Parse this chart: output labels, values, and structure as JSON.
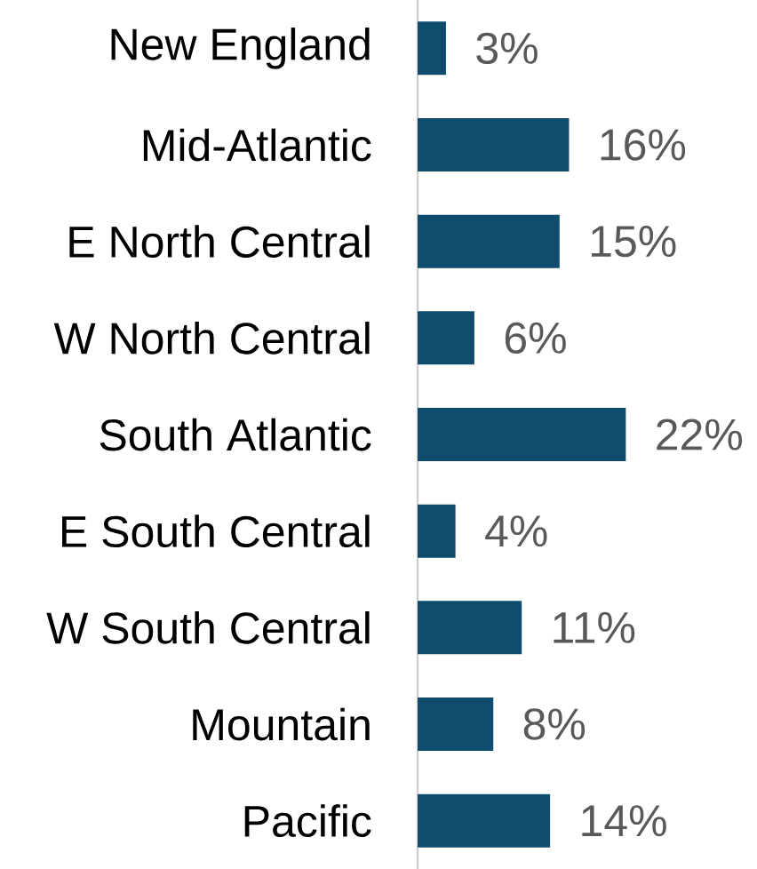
{
  "chart_data": {
    "type": "bar",
    "orientation": "horizontal",
    "color": "#0f4c6e",
    "categories": [
      "New England",
      "Mid-Atlantic",
      "E North Central",
      "W North Central",
      "South Atlantic",
      "E South Central",
      "W South Central",
      "Mountain",
      "Pacific"
    ],
    "values": [
      3,
      16,
      15,
      6,
      22,
      4,
      11,
      8,
      14
    ],
    "value_labels": [
      "3%",
      "16%",
      "15%",
      "6%",
      "22%",
      "4%",
      "11%",
      "8%",
      "14%"
    ]
  }
}
